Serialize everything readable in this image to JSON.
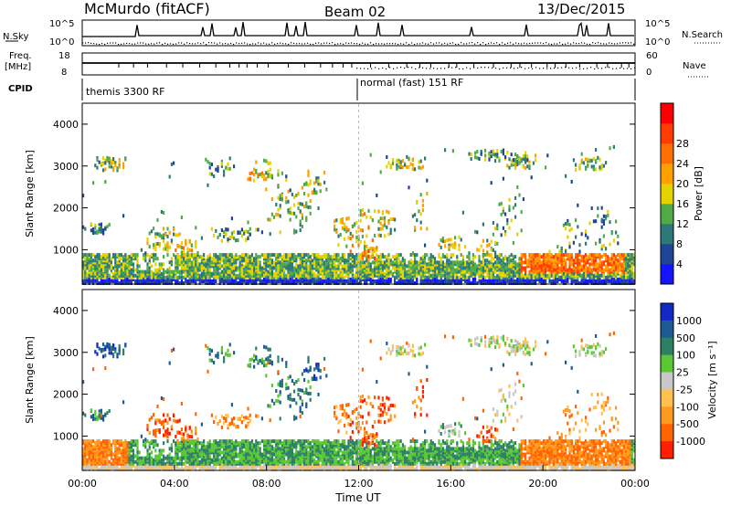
{
  "header": {
    "station": "McMurdo (fitACF)",
    "beam": "Beam 02",
    "date": "13/Dec/2015"
  },
  "summary": {
    "nsky_label": "N.Sky",
    "nsearch_label": "N.Search",
    "nsky_ticks": [
      "10^5",
      "10^0"
    ],
    "nsearch_ticks": [
      "10^5",
      "10^0"
    ],
    "freq_label_1": "Freq.",
    "freq_label_2": "[MHz]",
    "freq_ticks": [
      "18",
      "8"
    ],
    "nave_label": "Nave",
    "nave_ticks": [
      "60",
      "0"
    ],
    "cpid_label": "CPID",
    "cpid_segments": [
      {
        "label": "themis 3300 RF",
        "start_hour": 0,
        "end_hour": 12
      },
      {
        "label": "normal (fast) 151 RF",
        "start_hour": 12,
        "end_hour": 24
      }
    ]
  },
  "chart_data": [
    {
      "type": "heatmap",
      "name": "power",
      "ylabel": "Slant Range [km]",
      "ylim": [
        180,
        4500
      ],
      "yticks": [
        "1000",
        "2000",
        "3000",
        "4000"
      ],
      "colorbar_label": "Power [dB]",
      "colorbar_ticks": [
        "4",
        "8",
        "12",
        "16",
        "20",
        "24",
        "28"
      ],
      "colors": [
        "#1414ff",
        "#1e4696",
        "#2d7878",
        "#50aa46",
        "#e6d200",
        "#ffa000",
        "#ff6e00",
        "#ff3c00",
        "#ff0000"
      ]
    },
    {
      "type": "heatmap",
      "name": "velocity",
      "ylabel": "Slant Range [km]",
      "ylim": [
        180,
        4500
      ],
      "yticks": [
        "1000",
        "2000",
        "3000",
        "4000"
      ],
      "colorbar_label": "Velocity [m s⁻¹]",
      "colorbar_ticks": [
        "1000",
        "500",
        "100",
        "25",
        "-25",
        "-100",
        "-500",
        "-1000"
      ],
      "colors": [
        "#1428c8",
        "#1e5a96",
        "#2e8064",
        "#5ac832",
        "#c8c8c8",
        "#ffc050",
        "#ff9a1e",
        "#ff6400",
        "#ff1e00"
      ]
    }
  ],
  "xaxis": {
    "label": "Time UT",
    "ticks": [
      "00:00",
      "04:00",
      "08:00",
      "12:00",
      "16:00",
      "20:00",
      "00:00"
    ]
  }
}
